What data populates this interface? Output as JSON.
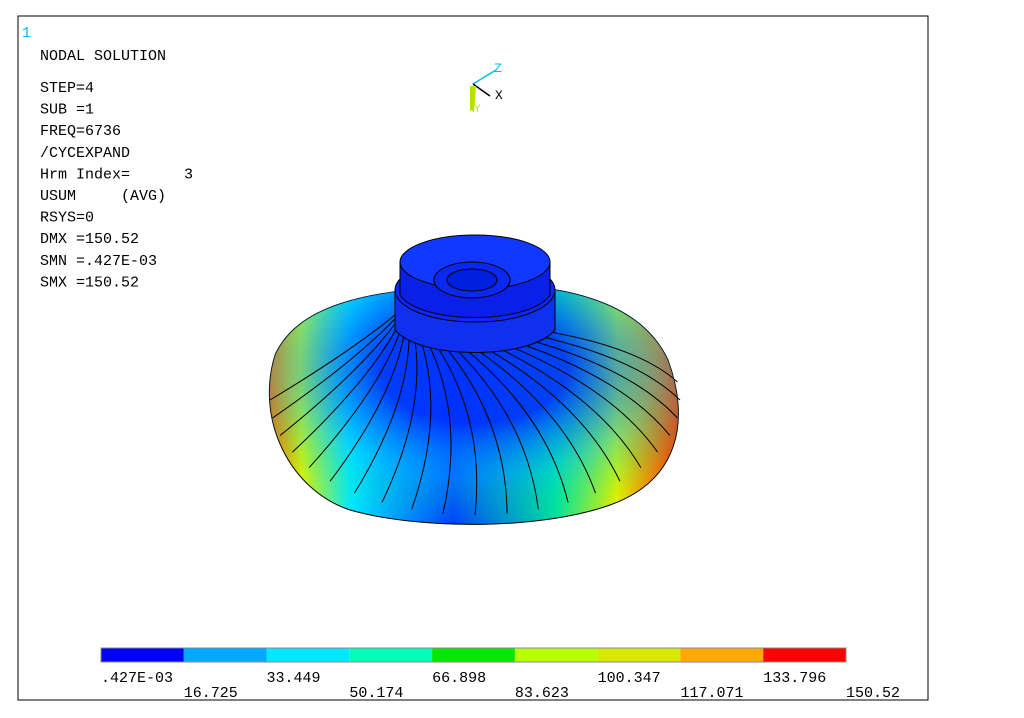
{
  "window_number": "1",
  "header": {
    "title": "NODAL SOLUTION",
    "lines": [
      "STEP=4",
      "SUB =1",
      "FREQ=6736",
      "/CYCEXPAND",
      "Hrm Index=      3",
      "USUM     (AVG)",
      "RSYS=0",
      "DMX =150.52",
      "SMN =.427E-03",
      "SMX =150.52"
    ]
  },
  "triad": {
    "z": "Z",
    "x": "X",
    "y": "Y"
  },
  "legend": {
    "colors": [
      "#0000ff",
      "#00a8ff",
      "#00e8ff",
      "#00ffb8",
      "#00e800",
      "#b8ff00",
      "#d8e800",
      "#ffa800",
      "#ff0000"
    ],
    "labels": [
      ".427E-03",
      "16.725",
      "33.449",
      "50.174",
      "66.898",
      "83.623",
      "100.347",
      "117.071",
      "133.796",
      "150.52"
    ]
  }
}
